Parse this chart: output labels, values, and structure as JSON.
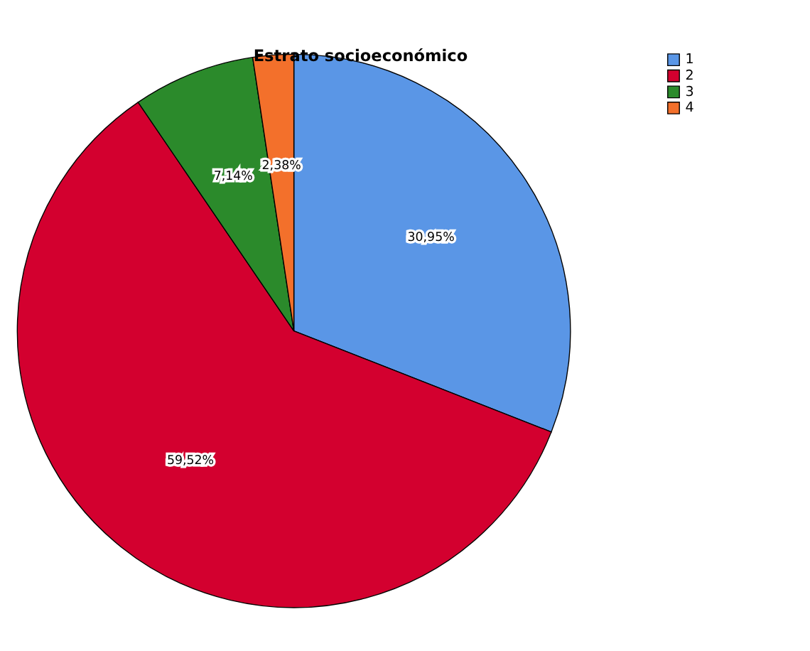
{
  "chart_data": {
    "type": "pie",
    "title": "Estrato socioeconómico",
    "categories": [
      "1",
      "2",
      "3",
      "4"
    ],
    "values": [
      30.95,
      59.52,
      7.14,
      2.38
    ],
    "colors": [
      "#5a96e6",
      "#d3002f",
      "#2b8a2b",
      "#f3702b"
    ],
    "value_labels": [
      "30,95%",
      "59,52%",
      "7,14%",
      "2,38%"
    ],
    "legend": "top right"
  }
}
